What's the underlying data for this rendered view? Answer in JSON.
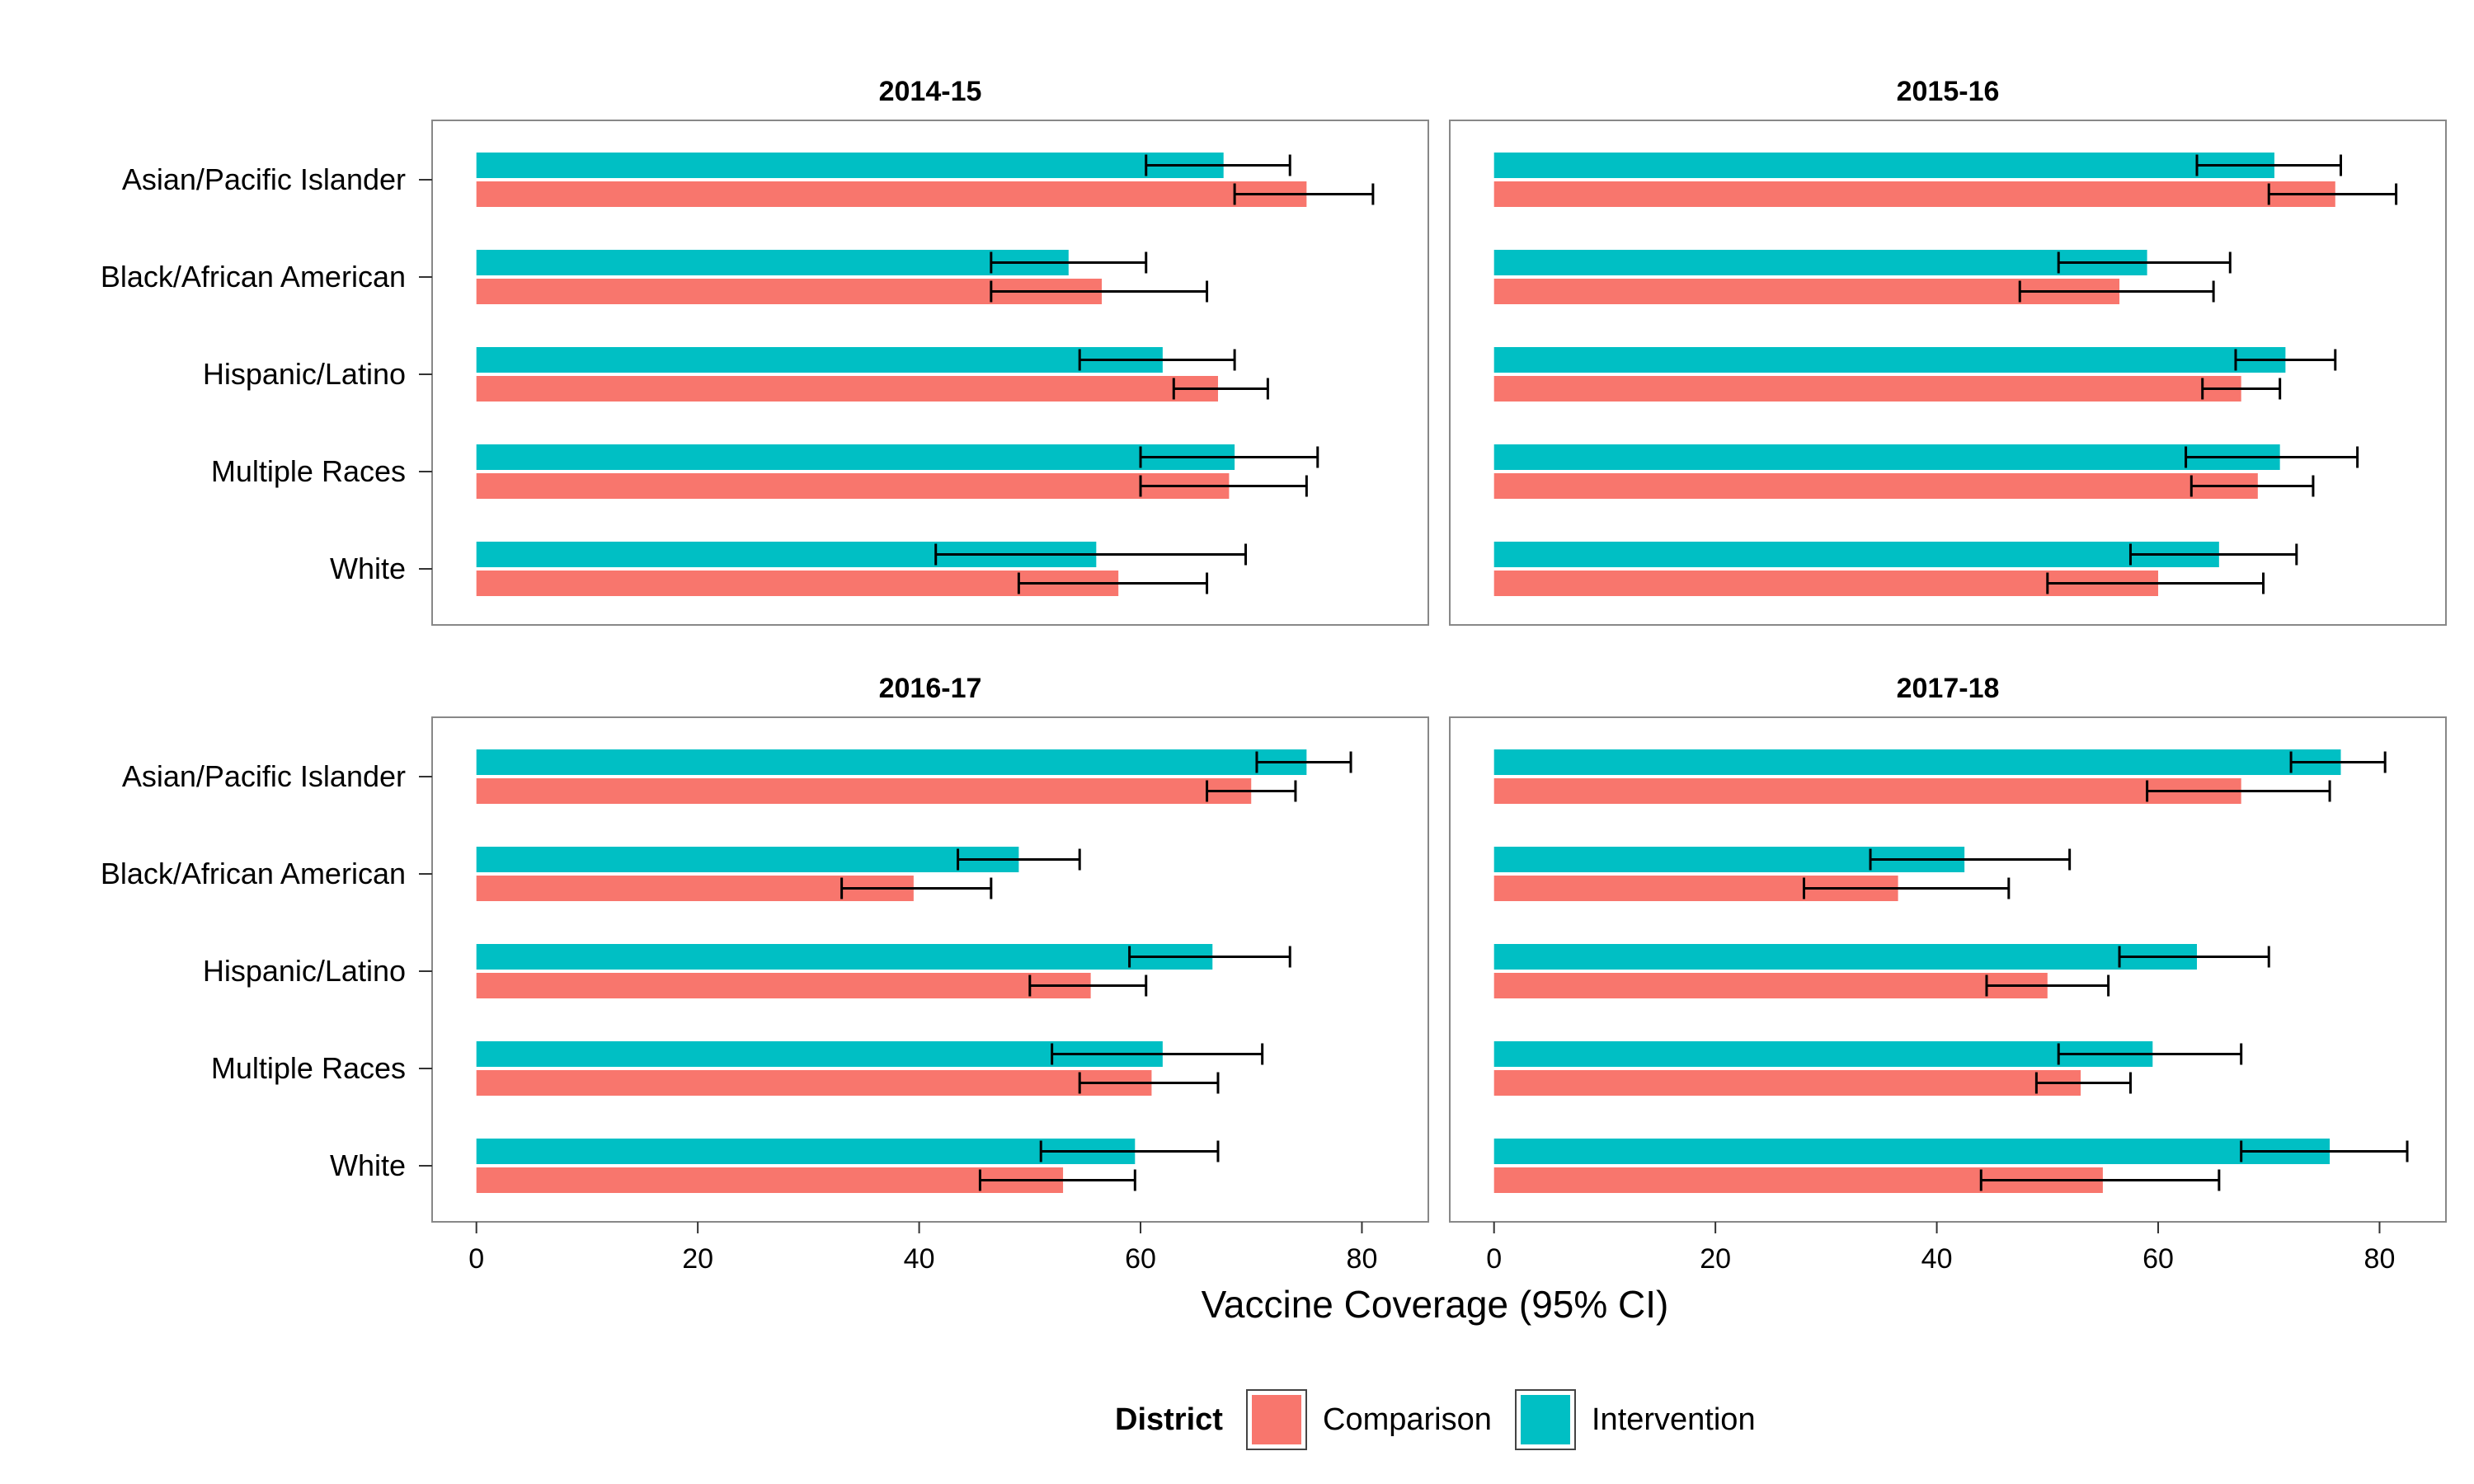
{
  "chart_data": {
    "type": "bar",
    "orientation": "horizontal",
    "xlabel": "Vaccine Coverage (95% CI)",
    "xlim": [
      -4,
      86
    ],
    "xticks": [
      0,
      20,
      40,
      60,
      80
    ],
    "categories": [
      "Asian/Pacific Islander",
      "Black/African American",
      "Hispanic/Latino",
      "Multiple Races",
      "White"
    ],
    "legend": {
      "title": "District",
      "placement": "bottom",
      "entries": [
        {
          "name": "Comparison",
          "color": "#F8766D"
        },
        {
          "name": "Intervention",
          "color": "#00BFC4"
        }
      ]
    },
    "colors": {
      "Comparison": "#F8766D",
      "Intervention": "#00BFC4",
      "panel_border": "#888888",
      "error_bar": "#000000"
    },
    "grid": false,
    "panels": [
      {
        "title": "2014-15",
        "series": [
          {
            "name": "Intervention",
            "values": [
              67.5,
              53.5,
              62,
              68.5,
              56
            ],
            "ci_low": [
              60.5,
              46.5,
              54.5,
              60,
              41.5
            ],
            "ci_high": [
              73.5,
              60.5,
              68.5,
              76,
              69.5
            ]
          },
          {
            "name": "Comparison",
            "values": [
              75,
              56.5,
              67,
              68,
              58
            ],
            "ci_low": [
              68.5,
              46.5,
              63,
              60,
              49
            ],
            "ci_high": [
              81,
              66,
              71.5,
              75,
              66
            ]
          }
        ]
      },
      {
        "title": "2015-16",
        "series": [
          {
            "name": "Intervention",
            "values": [
              70.5,
              59,
              71.5,
              71,
              65.5
            ],
            "ci_low": [
              63.5,
              51,
              67,
              62.5,
              57.5
            ],
            "ci_high": [
              76.5,
              66.5,
              76,
              78,
              72.5
            ]
          },
          {
            "name": "Comparison",
            "values": [
              76,
              56.5,
              67.5,
              69,
              60
            ],
            "ci_low": [
              70,
              47.5,
              64,
              63,
              50
            ],
            "ci_high": [
              81.5,
              65,
              71,
              74,
              69.5
            ]
          }
        ]
      },
      {
        "title": "2016-17",
        "series": [
          {
            "name": "Intervention",
            "values": [
              75,
              49,
              66.5,
              62,
              59.5
            ],
            "ci_low": [
              70.5,
              43.5,
              59,
              52,
              51
            ],
            "ci_high": [
              79,
              54.5,
              73.5,
              71,
              67
            ]
          },
          {
            "name": "Comparison",
            "values": [
              70,
              39.5,
              55.5,
              61,
              53
            ],
            "ci_low": [
              66,
              33,
              50,
              54.5,
              45.5
            ],
            "ci_high": [
              74,
              46.5,
              60.5,
              67,
              59.5
            ]
          }
        ]
      },
      {
        "title": "2017-18",
        "series": [
          {
            "name": "Intervention",
            "values": [
              76.5,
              42.5,
              63.5,
              59.5,
              75.5
            ],
            "ci_low": [
              72,
              34,
              56.5,
              51,
              67.5
            ],
            "ci_high": [
              80.5,
              52,
              70,
              67.5,
              82.5
            ]
          },
          {
            "name": "Comparison",
            "values": [
              67.5,
              36.5,
              50,
              53,
              55
            ],
            "ci_low": [
              59,
              28,
              44.5,
              49,
              44
            ],
            "ci_high": [
              75.5,
              46.5,
              55.5,
              57.5,
              65.5
            ]
          }
        ]
      }
    ]
  }
}
